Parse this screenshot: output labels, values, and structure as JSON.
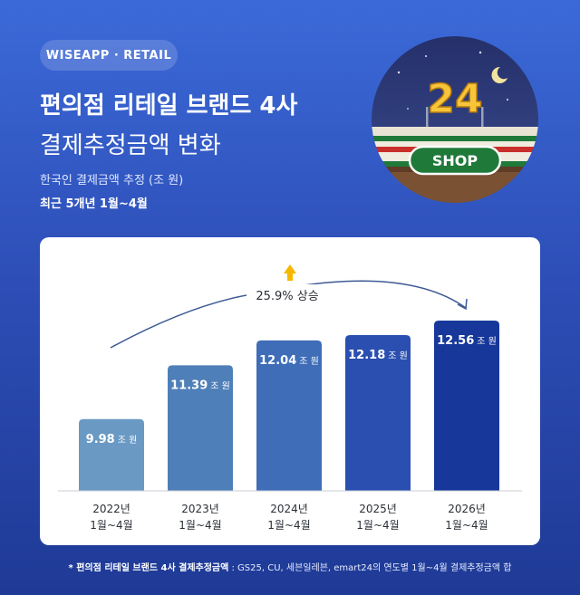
{
  "header": {
    "brand": "WISEAPP · RETAIL",
    "title_line1": "편의점 리테일 브랜드 4사",
    "title_line2": "결제추정금액 변화",
    "subtitle": "한국인 결제금액 추정 (조 원)",
    "period": "최근 5개년 1월~4월"
  },
  "badge": {
    "number": "24",
    "sign": "SHOP",
    "moon_icon": "crescent-moon-icon"
  },
  "annotation": {
    "change_label": "25.9% 상승",
    "icon": "up-arrow-icon"
  },
  "chart_data": {
    "type": "bar",
    "categories": [
      "2022년",
      "2023년",
      "2024년",
      "2025년",
      "2026년"
    ],
    "category_sublabel": "1월~4월",
    "values": [
      9.98,
      11.39,
      12.04,
      12.18,
      12.56
    ],
    "value_labels": [
      "9.98",
      "11.39",
      "12.04",
      "12.18",
      "12.56"
    ],
    "unit": "조 원",
    "bar_colors": [
      "#6a99c4",
      "#4f7fb8",
      "#3f6db8",
      "#2a4fb0",
      "#17389a"
    ],
    "title": "",
    "xlabel": "",
    "ylabel": ""
  },
  "footnote": {
    "prefix": "* 편의점 리테일 브랜드 4사 결제추정금액",
    "text": " : GS25, CU, 세븐일레븐, emart24의 연도별 1월~4월 결제추정금액 합"
  }
}
